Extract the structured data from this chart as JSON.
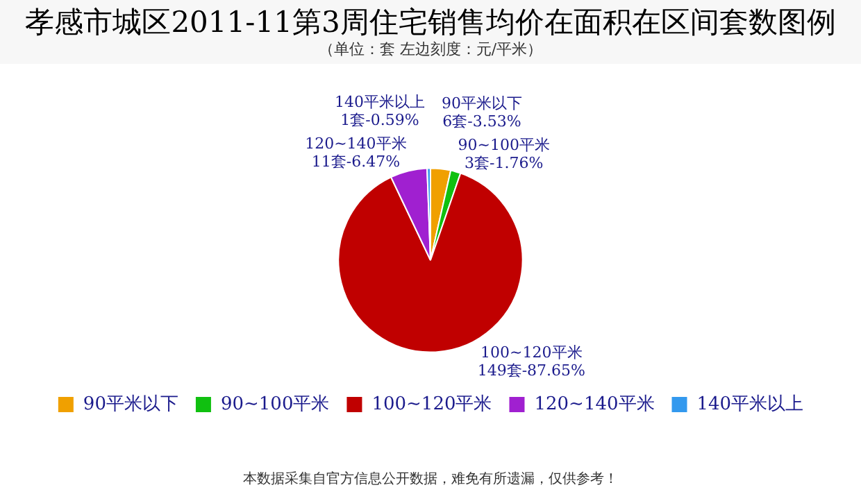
{
  "chart_data": {
    "type": "pie",
    "title": "孝感市城区2011-11第3周住宅销售均价在面积在区间套数图例",
    "subtitle": "（单位：套 左边刻度：元/平米）",
    "categories": [
      "90平米以下",
      "90~100平米",
      "100~120平米",
      "120~140平米",
      "140平米以上"
    ],
    "values": [
      6,
      3,
      149,
      11,
      1
    ],
    "value_labels": [
      "6套-3.53%",
      "3套-1.76%",
      "149套-87.65%",
      "11套-6.47%",
      "1套-0.59%"
    ],
    "colors": [
      "#f0a000",
      "#10c010",
      "#c00000",
      "#a020d0",
      "#3399ee"
    ],
    "legend": "bottom",
    "annotations": [
      "本数据采集自官方信息公开数据，难免有所遗漏，仅供参考！"
    ]
  }
}
